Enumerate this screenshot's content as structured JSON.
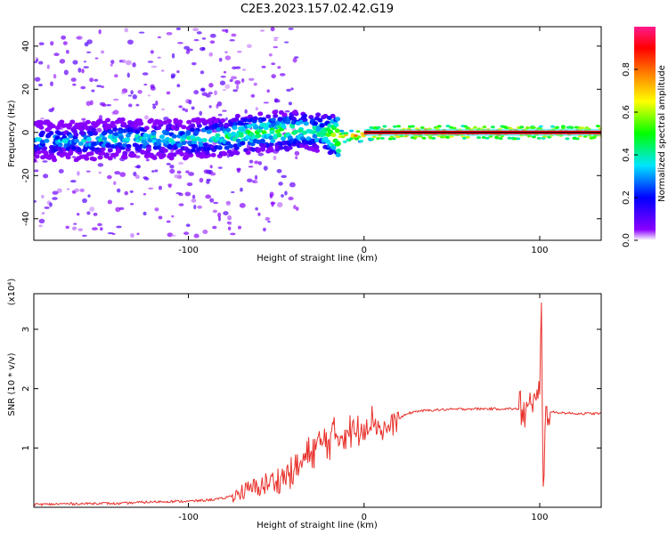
{
  "title": "C2E3.2023.157.02.42.G19",
  "chart_data": [
    {
      "type": "heatmap",
      "xlabel": "Height of straight line (km)",
      "ylabel": "Frequency (Hz)",
      "xlim": [
        -188,
        135
      ],
      "ylim": [
        -50,
        49
      ],
      "x_ticks": [
        -100,
        0,
        100
      ],
      "x_tick_labels": [
        "-100",
        "0",
        "100"
      ],
      "y_ticks": [
        -40,
        -20,
        0,
        20,
        40
      ],
      "y_tick_labels": [
        "-40",
        "-20",
        "0",
        "20",
        "40"
      ],
      "colorbar": {
        "label": "Normalized spectral amplitude",
        "range": [
          0,
          1
        ],
        "ticks": [
          0.0,
          0.2,
          0.4,
          0.6,
          0.8
        ],
        "tick_labels": [
          "0.0",
          "0.2",
          "0.4",
          "0.6",
          "0.8"
        ],
        "colors": [
          "#ffffff",
          "#8a00ff",
          "#0000ff",
          "#00e5ff",
          "#00ff00",
          "#ffff00",
          "#ff8000",
          "#ff0000",
          "#ff1a8c"
        ]
      },
      "ridge": {
        "x": [
          -188,
          -160,
          -140,
          -120,
          -100,
          -80,
          -60,
          -40,
          -25,
          -15,
          0,
          10,
          50,
          90,
          100,
          135
        ],
        "freq_hz": [
          -4,
          -4,
          -3,
          -3,
          -3,
          -2,
          0,
          1,
          0,
          -2,
          -1,
          0,
          0,
          0,
          0,
          0
        ],
        "amplitude": [
          0.4,
          0.4,
          0.45,
          0.45,
          0.45,
          0.5,
          0.55,
          0.55,
          0.5,
          0.75,
          0.85,
          0.95,
          0.95,
          0.95,
          0.9,
          0.95
        ]
      }
    },
    {
      "type": "line",
      "xlabel": "Height of straight line (km)",
      "ylabel": "SNR (10 * v/v)",
      "y_multiplier": "(x10⁴)",
      "xlim": [
        -188,
        135
      ],
      "ylim": [
        0,
        3.6
      ],
      "x_ticks": [
        -100,
        0,
        100
      ],
      "x_tick_labels": [
        "-100",
        "0",
        "100"
      ],
      "y_ticks": [
        1,
        2,
        3
      ],
      "y_tick_labels": [
        "1",
        "2",
        "3"
      ],
      "series": [
        {
          "color": "#e8302a",
          "x": [
            -188,
            -180,
            -170,
            -160,
            -150,
            -140,
            -130,
            -120,
            -110,
            -100,
            -90,
            -80,
            -70,
            -60,
            -50,
            -40,
            -35,
            -30,
            -25,
            -20,
            -15,
            -10,
            -5,
            0,
            5,
            10,
            15,
            20,
            25,
            30,
            35,
            40,
            50,
            60,
            70,
            80,
            85,
            90,
            92,
            94,
            96,
            98,
            100,
            101,
            102,
            103,
            104,
            106,
            110,
            120,
            135
          ],
          "y": [
            0.05,
            0.05,
            0.06,
            0.06,
            0.07,
            0.06,
            0.08,
            0.09,
            0.1,
            0.1,
            0.12,
            0.15,
            0.25,
            0.35,
            0.45,
            0.6,
            0.75,
            0.95,
            1.05,
            1.15,
            1.2,
            1.3,
            1.25,
            1.4,
            1.5,
            1.3,
            1.35,
            1.5,
            1.58,
            1.62,
            1.63,
            1.64,
            1.65,
            1.66,
            1.66,
            1.66,
            1.66,
            1.65,
            1.6,
            1.75,
            1.6,
            1.8,
            1.9,
            3.45,
            0.35,
            1.3,
            1.7,
            1.6,
            1.6,
            1.58,
            1.58
          ]
        }
      ]
    }
  ]
}
